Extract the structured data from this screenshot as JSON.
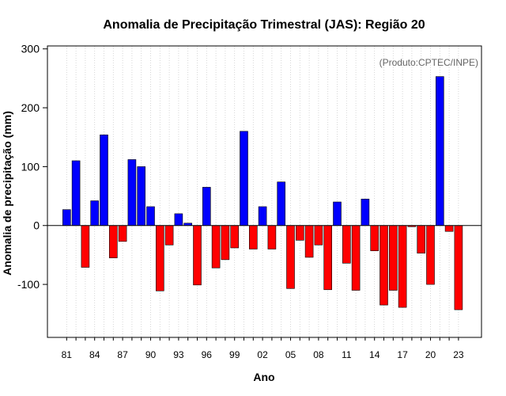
{
  "chart_data": {
    "type": "bar",
    "title": "Anomalia de Precipitação Trimestral (JAS): Região 20",
    "xlabel": "Ano",
    "ylabel": "Anomalia de precipitação (mm)",
    "credit": "(Produto:CPTEC/INPE)",
    "ylim": [
      -190,
      305
    ],
    "yticks": [
      -100,
      0,
      100,
      200,
      300
    ],
    "grid": "vertical dotted",
    "positive_color": "#0000ff",
    "negative_color": "#ff0000",
    "categories": [
      "1981",
      "1982",
      "1983",
      "1984",
      "1985",
      "1986",
      "1987",
      "1988",
      "1989",
      "1990",
      "1991",
      "1992",
      "1993",
      "1994",
      "1995",
      "1996",
      "1997",
      "1998",
      "1999",
      "2000",
      "2001",
      "2002",
      "2003",
      "2004",
      "2005",
      "2006",
      "2007",
      "2008",
      "2009",
      "2010",
      "2011",
      "2012",
      "2013",
      "2014",
      "2015",
      "2016",
      "2017",
      "2018",
      "2019",
      "2020",
      "2021",
      "2022",
      "2023"
    ],
    "xtick_labels": [
      {
        "index": 0,
        "label": "81"
      },
      {
        "index": 3,
        "label": "84"
      },
      {
        "index": 6,
        "label": "87"
      },
      {
        "index": 9,
        "label": "90"
      },
      {
        "index": 12,
        "label": "93"
      },
      {
        "index": 15,
        "label": "96"
      },
      {
        "index": 18,
        "label": "99"
      },
      {
        "index": 21,
        "label": "02"
      },
      {
        "index": 24,
        "label": "05"
      },
      {
        "index": 27,
        "label": "08"
      },
      {
        "index": 30,
        "label": "11"
      },
      {
        "index": 33,
        "label": "14"
      },
      {
        "index": 36,
        "label": "17"
      },
      {
        "index": 39,
        "label": "20"
      },
      {
        "index": 42,
        "label": "23"
      }
    ],
    "values": [
      27,
      110,
      -71,
      42,
      154,
      -55,
      -27,
      112,
      100,
      32,
      -111,
      -33,
      20,
      4,
      -101,
      65,
      -72,
      -58,
      -38,
      160,
      -40,
      32,
      -40,
      74,
      -107,
      -25,
      -54,
      -33,
      -109,
      40,
      -64,
      -110,
      45,
      -43,
      -135,
      -110,
      -139,
      -2,
      -47,
      -100,
      253,
      -10,
      -143
    ]
  }
}
